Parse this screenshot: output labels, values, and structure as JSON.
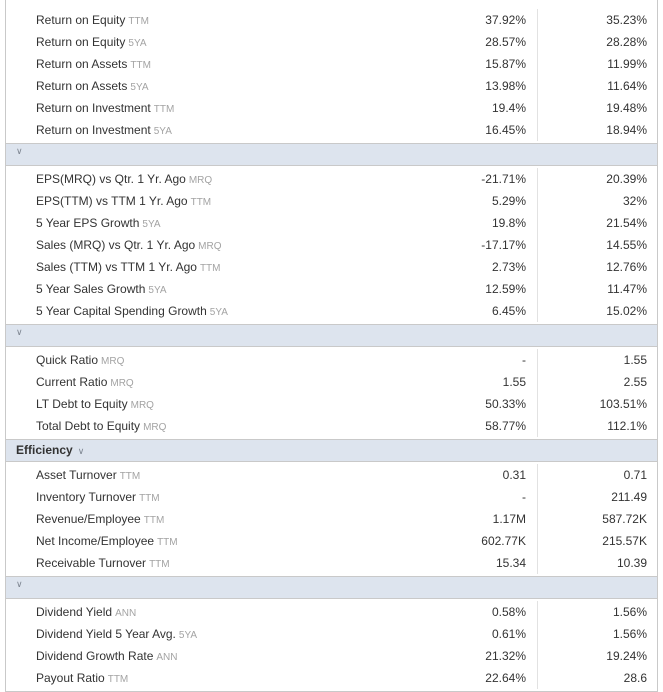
{
  "sections": [
    {
      "header": null,
      "rows": [
        {
          "label": "Return on Equity",
          "suffix": "TTM",
          "v1": "37.92%",
          "v2": "35.23%"
        },
        {
          "label": "Return on Equity",
          "suffix": "5YA",
          "v1": "28.57%",
          "v2": "28.28%"
        },
        {
          "label": "Return on Assets",
          "suffix": "TTM",
          "v1": "15.87%",
          "v2": "11.99%"
        },
        {
          "label": "Return on Assets",
          "suffix": "5YA",
          "v1": "13.98%",
          "v2": "11.64%"
        },
        {
          "label": "Return on Investment",
          "suffix": "TTM",
          "v1": "19.4%",
          "v2": "19.48%"
        },
        {
          "label": "Return on Investment",
          "suffix": "5YA",
          "v1": "16.45%",
          "v2": "18.94%"
        }
      ]
    },
    {
      "header": {
        "title": "",
        "chevron": "chevron-down-icon"
      },
      "rows": [
        {
          "label": "EPS(MRQ) vs Qtr. 1 Yr. Ago",
          "suffix": "MRQ",
          "v1": "-21.71%",
          "v2": "20.39%"
        },
        {
          "label": "EPS(TTM) vs TTM 1 Yr. Ago",
          "suffix": "TTM",
          "v1": "5.29%",
          "v2": "32%"
        },
        {
          "label": "5 Year EPS Growth",
          "suffix": "5YA",
          "v1": "19.8%",
          "v2": "21.54%"
        },
        {
          "label": "Sales (MRQ) vs Qtr. 1 Yr. Ago",
          "suffix": "MRQ",
          "v1": "-17.17%",
          "v2": "14.55%"
        },
        {
          "label": "Sales (TTM) vs TTM 1 Yr. Ago",
          "suffix": "TTM",
          "v1": "2.73%",
          "v2": "12.76%"
        },
        {
          "label": "5 Year Sales Growth",
          "suffix": "5YA",
          "v1": "12.59%",
          "v2": "11.47%"
        },
        {
          "label": "5 Year Capital Spending Growth",
          "suffix": "5YA",
          "v1": "6.45%",
          "v2": "15.02%"
        }
      ]
    },
    {
      "header": {
        "title": "",
        "chevron": "chevron-down-icon"
      },
      "rows": [
        {
          "label": "Quick Ratio",
          "suffix": "MRQ",
          "v1": "-",
          "v2": "1.55"
        },
        {
          "label": "Current Ratio",
          "suffix": "MRQ",
          "v1": "1.55",
          "v2": "2.55"
        },
        {
          "label": "LT Debt to Equity",
          "suffix": "MRQ",
          "v1": "50.33%",
          "v2": "103.51%"
        },
        {
          "label": "Total Debt to Equity",
          "suffix": "MRQ",
          "v1": "58.77%",
          "v2": "112.1%"
        }
      ]
    },
    {
      "header": {
        "title": "Efficiency",
        "chevron": "chevron-down-icon"
      },
      "rows": [
        {
          "label": "Asset Turnover",
          "suffix": "TTM",
          "v1": "0.31",
          "v2": "0.71"
        },
        {
          "label": "Inventory Turnover",
          "suffix": "TTM",
          "v1": "-",
          "v2": "211.49"
        },
        {
          "label": "Revenue/Employee",
          "suffix": "TTM",
          "v1": "1.17M",
          "v2": "587.72K"
        },
        {
          "label": "Net Income/Employee",
          "suffix": "TTM",
          "v1": "602.77K",
          "v2": "215.57K"
        },
        {
          "label": "Receivable Turnover",
          "suffix": "TTM",
          "v1": "15.34",
          "v2": "10.39"
        }
      ]
    },
    {
      "header": {
        "title": "",
        "chevron": "chevron-down-icon"
      },
      "rows": [
        {
          "label": "Dividend Yield",
          "suffix": "ANN",
          "v1": "0.58%",
          "v2": "1.56%"
        },
        {
          "label": "Dividend Yield 5 Year Avg.",
          "suffix": "5YA",
          "v1": "0.61%",
          "v2": "1.56%"
        },
        {
          "label": "Dividend Growth Rate",
          "suffix": "ANN",
          "v1": "21.32%",
          "v2": "19.24%"
        },
        {
          "label": "Payout Ratio",
          "suffix": "TTM",
          "v1": "22.64%",
          "v2": "28.6"
        }
      ]
    }
  ],
  "colors": {
    "header_bg": "#dde4ee",
    "suffix": "#a3a3a3",
    "border": "#c9c9c9"
  }
}
